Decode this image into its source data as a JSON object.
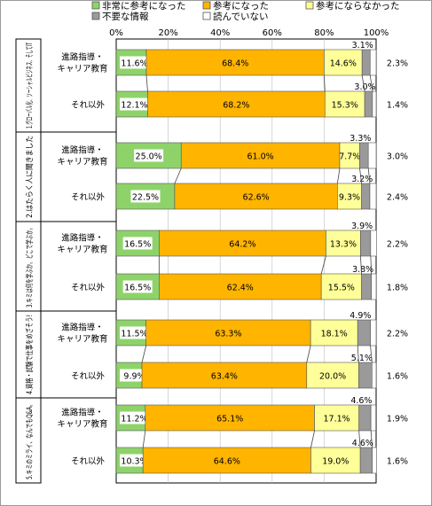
{
  "colors": {
    "very_useful": "#8ed36a",
    "useful": "#ffb400",
    "not_useful": "#ffff99",
    "unnecessary": "#9a9a9a",
    "not_read": "#ffffff"
  },
  "chart_data": {
    "type": "bar",
    "stacked": "percent",
    "orientation": "horizontal",
    "legend_position": "top",
    "xlim": [
      0,
      100
    ],
    "x_ticks": [
      "0%",
      "20%",
      "40%",
      "60%",
      "80%",
      "100%"
    ],
    "series": [
      {
        "name": "非常に参考になった",
        "color_key": "very_useful"
      },
      {
        "name": "参考になった",
        "color_key": "useful"
      },
      {
        "name": "参考にならなかった",
        "color_key": "not_useful"
      },
      {
        "name": "不要な情報",
        "color_key": "unnecessary"
      },
      {
        "name": "読んでいない",
        "color_key": "not_read"
      }
    ],
    "groups": [
      {
        "title": "1.グローバル化、ソーシャルビジネス、そしてIT",
        "rows": [
          {
            "label": "進路指導・キャリア教育",
            "values": [
              11.6,
              68.4,
              14.6,
              3.1,
              2.3
            ],
            "labels": [
              "11.6%",
              "68.4%",
              "14.6%",
              "3.1%",
              "2.3%"
            ]
          },
          {
            "label": "それ以外",
            "values": [
              12.1,
              68.2,
              15.3,
              3.0,
              1.4
            ],
            "labels": [
              "12.1%",
              "68.2%",
              "15.3%",
              "3.0%",
              "1.4%"
            ]
          }
        ]
      },
      {
        "title": "2.はたらく人に聞きました",
        "rows": [
          {
            "label": "進路指導・キャリア教育",
            "values": [
              25.0,
              61.0,
              7.7,
              3.3,
              3.0
            ],
            "labels": [
              "25.0%",
              "61.0%",
              "7.7%",
              "3.3%",
              "3.0%"
            ]
          },
          {
            "label": "それ以外",
            "values": [
              22.5,
              62.6,
              9.3,
              3.2,
              2.4
            ],
            "labels": [
              "22.5%",
              "62.6%",
              "9.3%",
              "3.2%",
              "2.4%"
            ]
          }
        ]
      },
      {
        "title": "3.キミは何を学ぶか。どこで学ぶか。",
        "rows": [
          {
            "label": "進路指導・キャリア教育",
            "values": [
              16.5,
              64.2,
              13.3,
              3.9,
              2.2
            ],
            "labels": [
              "16.5%",
              "64.2%",
              "13.3%",
              "3.9%",
              "2.2%"
            ]
          },
          {
            "label": "それ以外",
            "values": [
              16.5,
              62.4,
              15.5,
              3.8,
              1.8
            ],
            "labels": [
              "16.5%",
              "62.4%",
              "15.5%",
              "3.8%",
              "1.8%"
            ]
          }
        ]
      },
      {
        "title": "4.資格・試験で仕事をめざそう!",
        "rows": [
          {
            "label": "進路指導・キャリア教育",
            "values": [
              11.5,
              63.3,
              18.1,
              4.9,
              2.2
            ],
            "labels": [
              "11.5%",
              "63.3%",
              "18.1%",
              "4.9%",
              "2.2%"
            ]
          },
          {
            "label": "それ以外",
            "values": [
              9.9,
              63.4,
              20.0,
              5.1,
              1.6
            ],
            "labels": [
              "9.9%",
              "63.4%",
              "20.0%",
              "5.1%",
              "1.6%"
            ]
          }
        ]
      },
      {
        "title": "5.キミのミライ、なんでもQ&A。",
        "rows": [
          {
            "label": "進路指導・キャリア教育",
            "values": [
              11.2,
              65.1,
              17.1,
              4.6,
              1.9
            ],
            "labels": [
              "11.2%",
              "65.1%",
              "17.1%",
              "4.6%",
              "1.9%"
            ]
          },
          {
            "label": "それ以外",
            "values": [
              10.3,
              64.6,
              19.0,
              4.6,
              1.6
            ],
            "labels": [
              "10.3%",
              "64.6%",
              "19.0%",
              "4.6%",
              "1.6%"
            ]
          }
        ]
      }
    ]
  }
}
